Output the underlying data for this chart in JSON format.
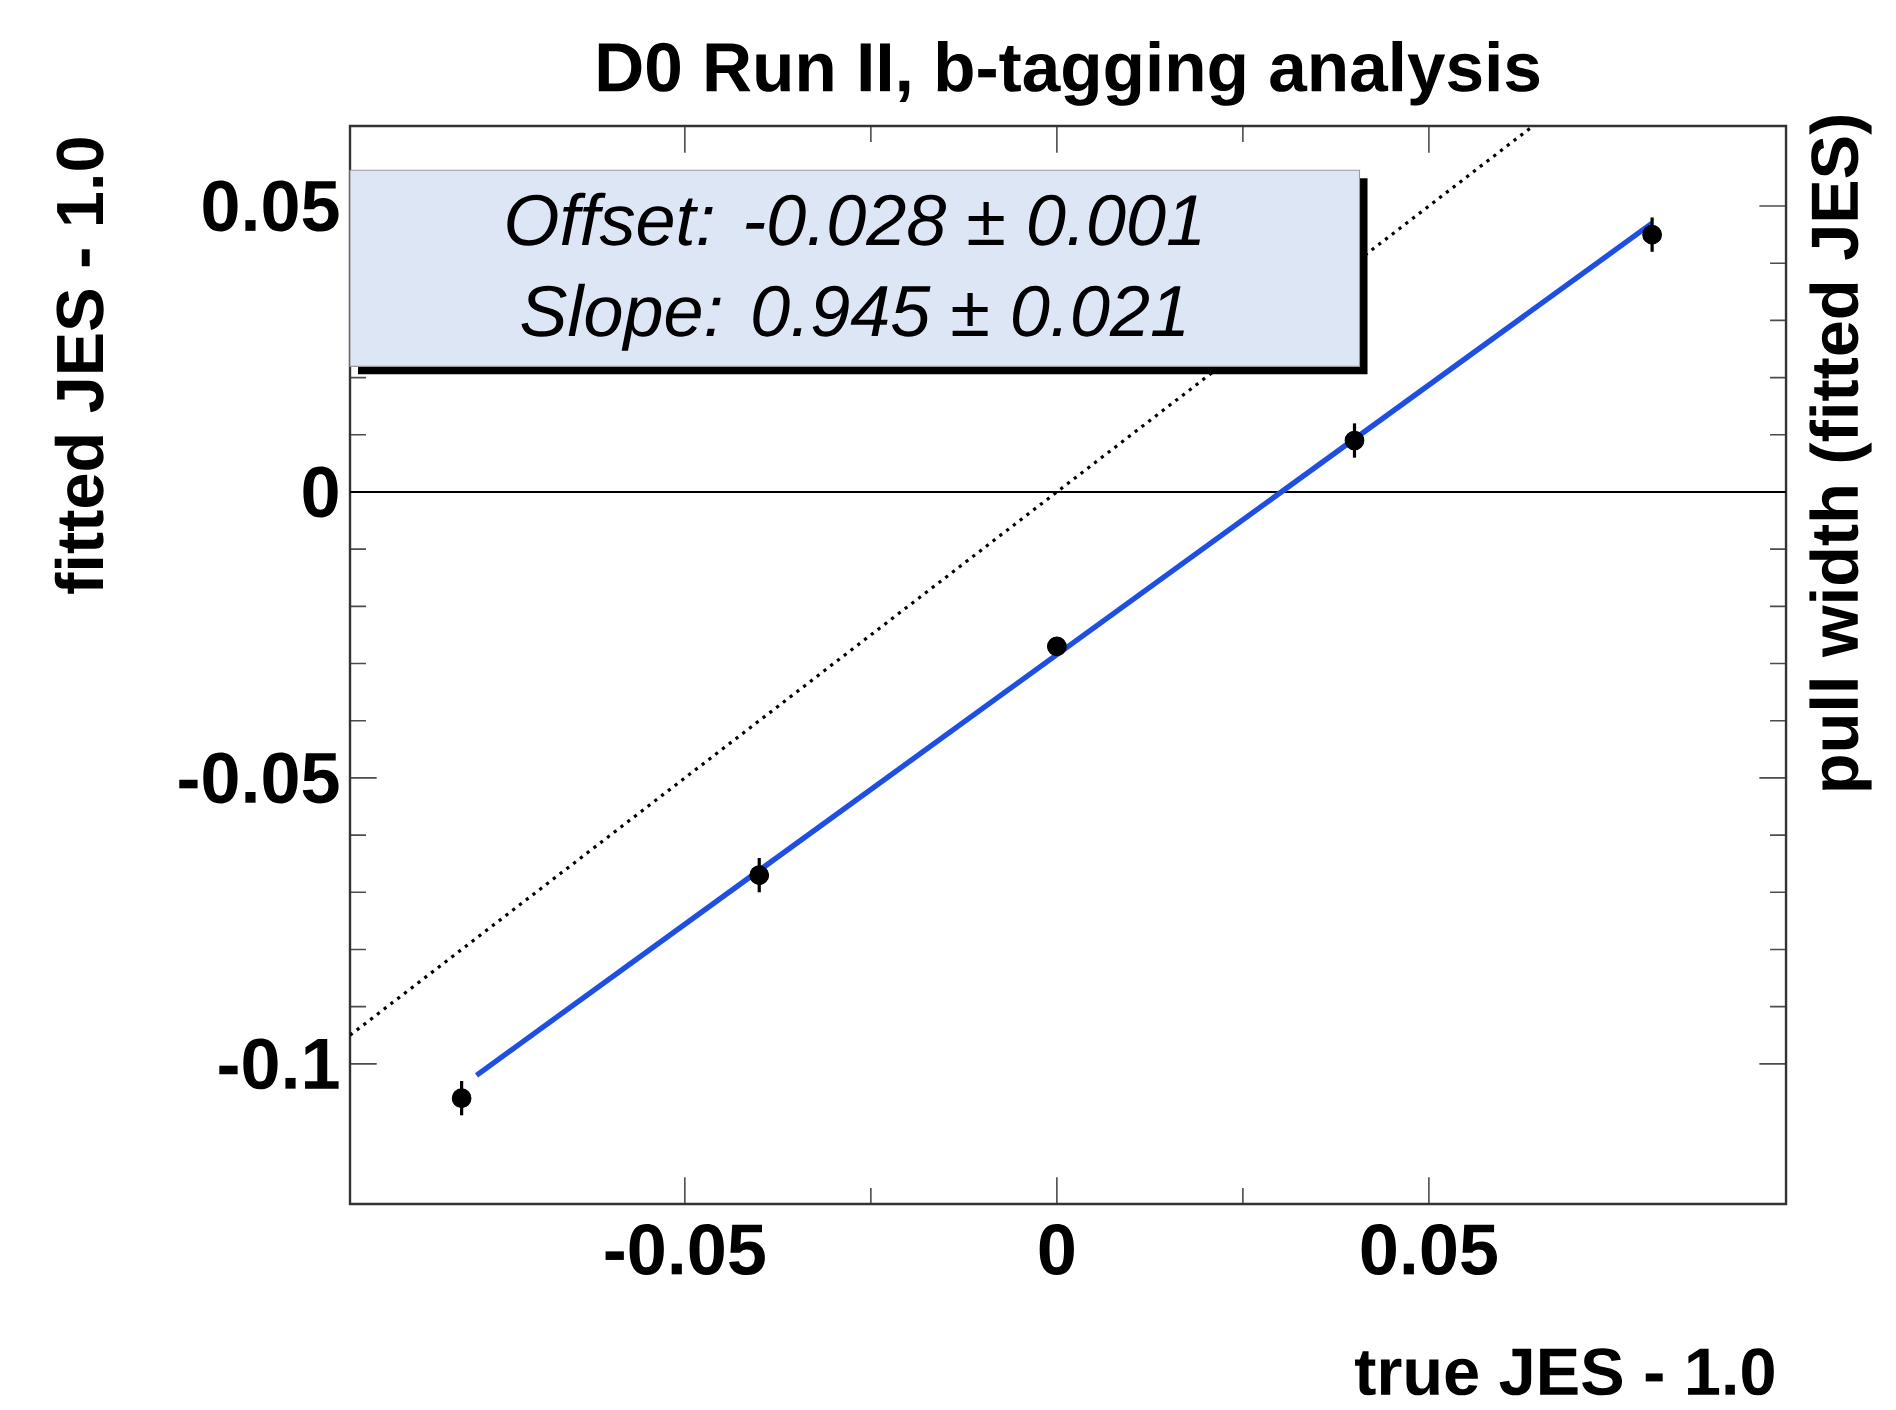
{
  "chart_data": {
    "type": "scatter",
    "title": "D0 Run II, b-tagging analysis",
    "xlabel": "true JES - 1.0",
    "ylabel": "fitted JES - 1.0",
    "y2label": "pull width (fitted JES)",
    "annotations": [
      "*Offset: -0.028 ± 0.001*",
      "*Slope:  0.945 ± 0.021*"
    ],
    "xlim": [
      -0.095,
      0.098
    ],
    "ylim": [
      -0.1245,
      0.064
    ],
    "xticks": [
      -0.05,
      0,
      0.05
    ],
    "yticks": [
      -0.1,
      -0.05,
      0,
      0.05
    ],
    "ref_lines": [
      {
        "axis": "y",
        "value": 0,
        "color": "#000000"
      }
    ],
    "series": [
      {
        "type": "line",
        "x": [
          -0.095,
          0.064
        ],
        "values": [
          -0.095,
          0.064
        ],
        "color": "#000000",
        "line_style": "dotted",
        "marker": "none"
      },
      {
        "type": "line",
        "x": [
          -0.078,
          0.08
        ],
        "values": [
          -0.102,
          0.047
        ],
        "color": "#1f4fe0",
        "line_style": "solid",
        "marker": "none"
      },
      {
        "x": [
          -0.08,
          -0.04,
          0,
          0.04,
          0.08
        ],
        "values": [
          -0.106,
          -0.067,
          -0.027,
          0.009,
          0.045
        ],
        "errors": [
          0.003,
          0.003,
          0.001,
          0.003,
          0.003
        ],
        "color": "#000000",
        "marker": "circle"
      }
    ]
  }
}
